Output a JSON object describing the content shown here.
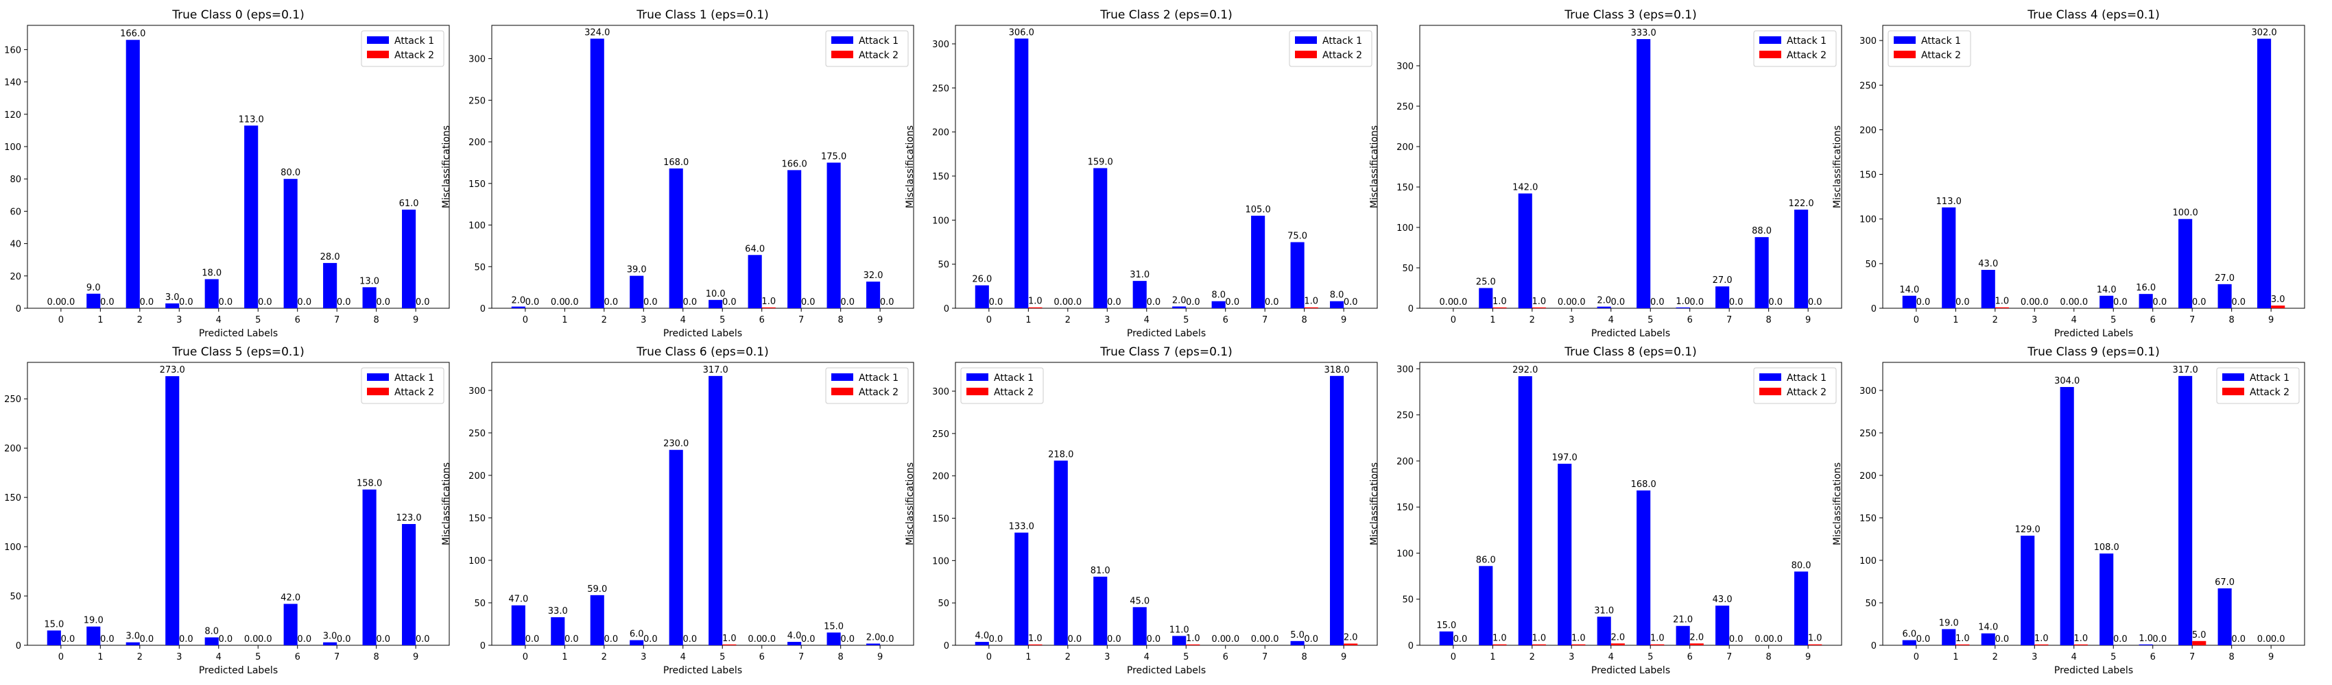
{
  "chart_data": [
    {
      "type": "bar",
      "title": "True Class 0 (eps=0.1)",
      "xlabel": "Predicted Labels",
      "ylabel": "Misclassifications",
      "categories": [
        "0",
        "1",
        "2",
        "3",
        "4",
        "5",
        "6",
        "7",
        "8",
        "9"
      ],
      "ylim": [
        0,
        175
      ],
      "yticks": [
        0,
        20,
        40,
        60,
        80,
        100,
        120,
        140,
        160
      ],
      "legend_position": "top-right",
      "series": [
        {
          "name": "Attack 1",
          "color": "#0000ff",
          "values": [
            0,
            9,
            166,
            3,
            18,
            113,
            80,
            28,
            13,
            61
          ]
        },
        {
          "name": "Attack 2",
          "color": "#ff0000",
          "values": [
            0,
            0,
            0,
            0,
            0,
            0,
            0,
            0,
            0,
            0
          ]
        }
      ]
    },
    {
      "type": "bar",
      "title": "True Class 1 (eps=0.1)",
      "xlabel": "Predicted Labels",
      "ylabel": "Misclassifications",
      "categories": [
        "0",
        "1",
        "2",
        "3",
        "4",
        "5",
        "6",
        "7",
        "8",
        "9"
      ],
      "ylim": [
        0,
        340
      ],
      "yticks": [
        0,
        50,
        100,
        150,
        200,
        250,
        300
      ],
      "legend_position": "top-right",
      "series": [
        {
          "name": "Attack 1",
          "color": "#0000ff",
          "values": [
            2,
            0,
            324,
            39,
            168,
            10,
            64,
            166,
            175,
            32
          ]
        },
        {
          "name": "Attack 2",
          "color": "#ff0000",
          "values": [
            0,
            0,
            0,
            0,
            0,
            0,
            1,
            0,
            0,
            0
          ]
        }
      ]
    },
    {
      "type": "bar",
      "title": "True Class 2 (eps=0.1)",
      "xlabel": "Predicted Labels",
      "ylabel": "Misclassifications",
      "categories": [
        "0",
        "1",
        "2",
        "3",
        "4",
        "5",
        "6",
        "7",
        "8",
        "9"
      ],
      "ylim": [
        0,
        321
      ],
      "yticks": [
        0,
        50,
        100,
        150,
        200,
        250,
        300
      ],
      "legend_position": "top-right",
      "series": [
        {
          "name": "Attack 1",
          "color": "#0000ff",
          "values": [
            26,
            306,
            0,
            159,
            31,
            2,
            8,
            105,
            75,
            8
          ]
        },
        {
          "name": "Attack 2",
          "color": "#ff0000",
          "values": [
            0,
            1,
            0,
            0,
            0,
            0,
            0,
            0,
            1,
            0
          ]
        }
      ]
    },
    {
      "type": "bar",
      "title": "True Class 3 (eps=0.1)",
      "xlabel": "Predicted Labels",
      "ylabel": "Misclassifications",
      "categories": [
        "0",
        "1",
        "2",
        "3",
        "4",
        "5",
        "6",
        "7",
        "8",
        "9"
      ],
      "ylim": [
        0,
        350
      ],
      "yticks": [
        0,
        50,
        100,
        150,
        200,
        250,
        300
      ],
      "legend_position": "top-right",
      "series": [
        {
          "name": "Attack 1",
          "color": "#0000ff",
          "values": [
            0,
            25,
            142,
            0,
            2,
            333,
            1,
            27,
            88,
            122
          ]
        },
        {
          "name": "Attack 2",
          "color": "#ff0000",
          "values": [
            0,
            1,
            1,
            0,
            0,
            0,
            0,
            0,
            0,
            0
          ]
        }
      ]
    },
    {
      "type": "bar",
      "title": "True Class 4 (eps=0.1)",
      "xlabel": "Predicted Labels",
      "ylabel": "Misclassifications",
      "categories": [
        "0",
        "1",
        "2",
        "3",
        "4",
        "5",
        "6",
        "7",
        "8",
        "9"
      ],
      "ylim": [
        0,
        317
      ],
      "yticks": [
        0,
        50,
        100,
        150,
        200,
        250,
        300
      ],
      "legend_position": "top-left",
      "series": [
        {
          "name": "Attack 1",
          "color": "#0000ff",
          "values": [
            14,
            113,
            43,
            0,
            0,
            14,
            16,
            100,
            27,
            302
          ]
        },
        {
          "name": "Attack 2",
          "color": "#ff0000",
          "values": [
            0,
            0,
            1,
            0,
            0,
            0,
            0,
            0,
            0,
            3
          ]
        }
      ]
    },
    {
      "type": "bar",
      "title": "True Class 5 (eps=0.1)",
      "xlabel": "Predicted Labels",
      "ylabel": "Misclassifications",
      "categories": [
        "0",
        "1",
        "2",
        "3",
        "4",
        "5",
        "6",
        "7",
        "8",
        "9"
      ],
      "ylim": [
        0,
        287
      ],
      "yticks": [
        0,
        50,
        100,
        150,
        200,
        250
      ],
      "legend_position": "top-right",
      "series": [
        {
          "name": "Attack 1",
          "color": "#0000ff",
          "values": [
            15,
            19,
            3,
            273,
            8,
            0,
            42,
            3,
            158,
            123
          ]
        },
        {
          "name": "Attack 2",
          "color": "#ff0000",
          "values": [
            0,
            0,
            0,
            0,
            0,
            0,
            0,
            0,
            0,
            0
          ]
        }
      ]
    },
    {
      "type": "bar",
      "title": "True Class 6 (eps=0.1)",
      "xlabel": "Predicted Labels",
      "ylabel": "Misclassifications",
      "categories": [
        "0",
        "1",
        "2",
        "3",
        "4",
        "5",
        "6",
        "7",
        "8",
        "9"
      ],
      "ylim": [
        0,
        333
      ],
      "yticks": [
        0,
        50,
        100,
        150,
        200,
        250,
        300
      ],
      "legend_position": "top-right",
      "series": [
        {
          "name": "Attack 1",
          "color": "#0000ff",
          "values": [
            47,
            33,
            59,
            6,
            230,
            317,
            0,
            4,
            15,
            2
          ]
        },
        {
          "name": "Attack 2",
          "color": "#ff0000",
          "values": [
            0,
            0,
            0,
            0,
            0,
            1,
            0,
            0,
            0,
            0
          ]
        }
      ]
    },
    {
      "type": "bar",
      "title": "True Class 7 (eps=0.1)",
      "xlabel": "Predicted Labels",
      "ylabel": "Misclassifications",
      "categories": [
        "0",
        "1",
        "2",
        "3",
        "4",
        "5",
        "6",
        "7",
        "8",
        "9"
      ],
      "ylim": [
        0,
        334
      ],
      "yticks": [
        0,
        50,
        100,
        150,
        200,
        250,
        300
      ],
      "legend_position": "top-left",
      "series": [
        {
          "name": "Attack 1",
          "color": "#0000ff",
          "values": [
            4,
            133,
            218,
            81,
            45,
            11,
            0,
            0,
            5,
            318
          ]
        },
        {
          "name": "Attack 2",
          "color": "#ff0000",
          "values": [
            0,
            1,
            0,
            0,
            0,
            1,
            0,
            0,
            0,
            2
          ]
        }
      ]
    },
    {
      "type": "bar",
      "title": "True Class 8 (eps=0.1)",
      "xlabel": "Predicted Labels",
      "ylabel": "Misclassifications",
      "categories": [
        "0",
        "1",
        "2",
        "3",
        "4",
        "5",
        "6",
        "7",
        "8",
        "9"
      ],
      "ylim": [
        0,
        307
      ],
      "yticks": [
        0,
        50,
        100,
        150,
        200,
        250,
        300
      ],
      "legend_position": "top-right",
      "series": [
        {
          "name": "Attack 1",
          "color": "#0000ff",
          "values": [
            15,
            86,
            292,
            197,
            31,
            168,
            21,
            43,
            0,
            80
          ]
        },
        {
          "name": "Attack 2",
          "color": "#ff0000",
          "values": [
            0,
            1,
            1,
            1,
            2,
            1,
            2,
            0,
            0,
            1
          ]
        }
      ]
    },
    {
      "type": "bar",
      "title": "True Class 9 (eps=0.1)",
      "xlabel": "Predicted Labels",
      "ylabel": "Misclassifications",
      "categories": [
        "0",
        "1",
        "2",
        "3",
        "4",
        "5",
        "6",
        "7",
        "8",
        "9"
      ],
      "ylim": [
        0,
        333
      ],
      "yticks": [
        0,
        50,
        100,
        150,
        200,
        250,
        300
      ],
      "legend_position": "top-right",
      "series": [
        {
          "name": "Attack 1",
          "color": "#0000ff",
          "values": [
            6,
            19,
            14,
            129,
            304,
            108,
            1,
            317,
            67,
            0
          ]
        },
        {
          "name": "Attack 2",
          "color": "#ff0000",
          "values": [
            0,
            1,
            0,
            1,
            1,
            0,
            0,
            5,
            0,
            0
          ]
        }
      ]
    }
  ]
}
